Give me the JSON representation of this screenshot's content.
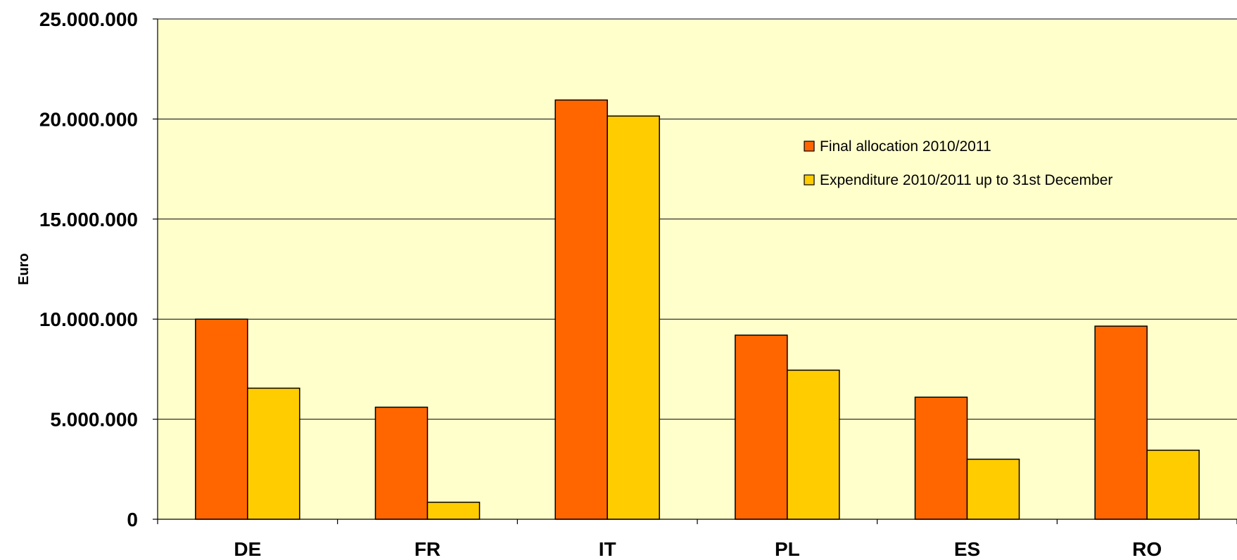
{
  "chart_data": {
    "type": "bar",
    "title": "",
    "xlabel": "",
    "ylabel": "Euro",
    "ylim": [
      0,
      25000000
    ],
    "yticks": [
      0,
      5000000,
      10000000,
      15000000,
      20000000,
      25000000
    ],
    "ytick_labels": [
      "0",
      "5.000.000",
      "10.000.000",
      "15.000.000",
      "20.000.000",
      "25.000.000"
    ],
    "categories": [
      "DE",
      "FR",
      "IT",
      "PL",
      "ES",
      "RO"
    ],
    "series": [
      {
        "name": "Final allocation 2010/2011",
        "color": "#ff6600",
        "values": [
          10000000,
          5600000,
          20950000,
          9200000,
          6100000,
          9650000
        ]
      },
      {
        "name": "Expenditure 2010/2011 up to 31st December",
        "color": "#ffcc00",
        "values": [
          6550000,
          850000,
          20150000,
          7450000,
          3000000,
          3450000
        ]
      }
    ],
    "grid": true,
    "plot_background": "#ffffcc",
    "legend_position": "top-right"
  }
}
